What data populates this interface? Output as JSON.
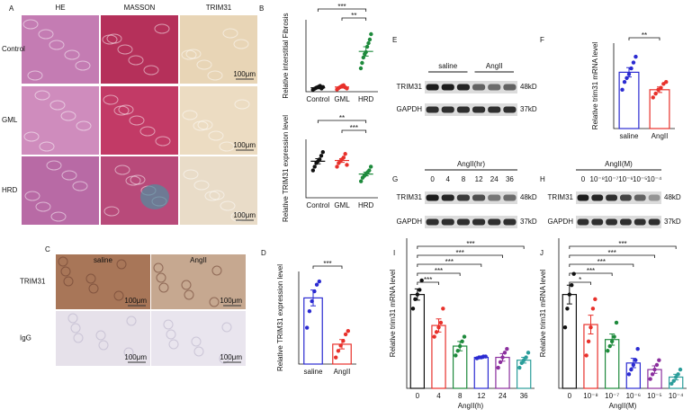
{
  "panel_labels": [
    "A",
    "B",
    "C",
    "D",
    "E",
    "F",
    "G",
    "H",
    "I",
    "J"
  ],
  "histology_A": {
    "columns": [
      "HE",
      "MASSON",
      "TRIM31"
    ],
    "rows": [
      "Control",
      "GML",
      "HRD"
    ],
    "scale_bar": "100μm"
  },
  "ihc_C": {
    "columns": [
      "saline",
      "AngII"
    ],
    "rows": [
      "TRIM31",
      "IgG"
    ],
    "scale_bar": "100μm"
  },
  "blot_E": {
    "groups": [
      "saline",
      "AngII"
    ],
    "bands": [
      "TRIM31",
      "GAPDH"
    ],
    "sizes": [
      "48kD",
      "37kD"
    ]
  },
  "blot_G": {
    "title": "AngII(hr)",
    "lanes": [
      "0",
      "4",
      "8",
      "12",
      "24",
      "36"
    ],
    "bands": [
      "TRIM31",
      "GAPDH"
    ],
    "sizes": [
      "48kD",
      "37kD"
    ]
  },
  "blot_H": {
    "title": "AngII(M)",
    "lanes": [
      "0",
      "10⁻⁸",
      "10⁻⁷",
      "10⁻⁶",
      "10⁻⁵",
      "10⁻⁴"
    ],
    "bands": [
      "TRIM31",
      "GAPDH"
    ],
    "sizes": [
      "48kD",
      "37kD"
    ]
  },
  "chart_data": [
    {
      "type": "dot",
      "y_label": "Relative interstitial Fibrosis",
      "categories": [
        "Control",
        "GML",
        "HRD"
      ],
      "values": [
        1.1,
        1.3,
        11.2
      ],
      "errors": [
        0.3,
        0.3,
        1.3
      ],
      "points": [
        [
          0.5,
          0.8,
          1.0,
          1.2,
          1.4,
          1.6,
          0.9,
          1.3
        ],
        [
          0.6,
          1.0,
          1.3,
          1.6,
          1.8,
          1.2,
          0.9
        ],
        [
          6.5,
          8,
          9.5,
          10.5,
          11,
          12.5,
          13.5,
          14.5,
          16
        ]
      ],
      "colors": [
        "#111111",
        "#e8312b",
        "#1e8a3c"
      ],
      "ylim": [
        0,
        20
      ],
      "significance": [
        {
          "between": [
            "Control",
            "HRD"
          ],
          "label": "***"
        },
        {
          "between": [
            "GML",
            "HRD"
          ],
          "label": "**"
        }
      ]
    },
    {
      "type": "dot",
      "y_label": "Relative TRIM31 expression level",
      "categories": [
        "Control",
        "GML",
        "HRD"
      ],
      "values": [
        1.0,
        1.02,
        0.65
      ],
      "errors": [
        0.07,
        0.05,
        0.05
      ],
      "points": [
        [
          0.75,
          0.85,
          0.95,
          1.0,
          1.05,
          1.15,
          1.25
        ],
        [
          0.85,
          0.95,
          1.0,
          1.05,
          1.1,
          1.2,
          0.9
        ],
        [
          0.45,
          0.55,
          0.6,
          0.65,
          0.7,
          0.75,
          0.85
        ]
      ],
      "colors": [
        "#111111",
        "#e8312b",
        "#1e8a3c"
      ],
      "ylim": [
        0,
        1.6
      ],
      "significance": [
        {
          "between": [
            "Control",
            "HRD"
          ],
          "label": "**"
        },
        {
          "between": [
            "GML",
            "HRD"
          ],
          "label": "***"
        }
      ]
    },
    {
      "type": "bar",
      "y_label": "Relative TRIM31 expression level",
      "categories": [
        "saline",
        "AngII"
      ],
      "values": [
        1.0,
        0.3
      ],
      "errors": [
        0.12,
        0.07
      ],
      "points": [
        [
          0.55,
          0.8,
          0.95,
          1.1,
          1.2,
          1.25
        ],
        [
          0.1,
          0.2,
          0.28,
          0.35,
          0.45,
          0.5
        ]
      ],
      "colors": [
        "#2b2bd1",
        "#e8312b"
      ],
      "ylim": [
        0,
        1.4
      ],
      "significance": [
        {
          "between": [
            "saline",
            "AngII"
          ],
          "label": "***"
        }
      ]
    },
    {
      "type": "bar",
      "y_label": "Relative trim31 mRNA level",
      "categories": [
        "saline",
        "AngII"
      ],
      "values": [
        1.45,
        1.0
      ],
      "errors": [
        0.12,
        0.07
      ],
      "points": [
        [
          1.0,
          1.2,
          1.3,
          1.4,
          1.55,
          1.7,
          1.85
        ],
        [
          0.8,
          0.9,
          1.0,
          1.05,
          1.15,
          1.2
        ]
      ],
      "colors": [
        "#2b2bd1",
        "#e8312b"
      ],
      "ylim": [
        0,
        2.2
      ],
      "significance": [
        {
          "between": [
            "saline",
            "AngII"
          ],
          "label": "**"
        }
      ]
    },
    {
      "type": "bar",
      "y_label": "Relative trim31 mRNA level",
      "x_label": "AngII(h)",
      "categories": [
        "0",
        "4",
        "8",
        "12",
        "24",
        "36"
      ],
      "values": [
        1.0,
        0.67,
        0.45,
        0.33,
        0.33,
        0.3
      ],
      "errors": [
        0.06,
        0.07,
        0.05,
        0.01,
        0.04,
        0.03
      ],
      "points": [
        [
          0.85,
          0.95,
          1.0,
          1.05,
          1.15
        ],
        [
          0.55,
          0.6,
          0.65,
          0.7,
          0.85
        ],
        [
          0.35,
          0.4,
          0.45,
          0.5,
          0.55
        ],
        [
          0.32,
          0.33,
          0.33,
          0.34,
          0.34
        ],
        [
          0.22,
          0.28,
          0.33,
          0.38,
          0.42
        ],
        [
          0.22,
          0.27,
          0.3,
          0.33,
          0.38
        ]
      ],
      "colors": [
        "#111111",
        "#e8312b",
        "#1e8a3c",
        "#2b2bd1",
        "#8b2f9e",
        "#2a9d9a"
      ],
      "ylim": [
        0,
        1.6
      ],
      "significance": [
        {
          "between": [
            "0",
            "36"
          ],
          "label": "***"
        },
        {
          "between": [
            "0",
            "24"
          ],
          "label": "***"
        },
        {
          "between": [
            "0",
            "12"
          ],
          "label": "***"
        },
        {
          "between": [
            "0",
            "8"
          ],
          "label": "***"
        },
        {
          "between": [
            "0",
            "4"
          ],
          "label": "***"
        }
      ]
    },
    {
      "type": "bar",
      "y_label": "Relative trim31 mRNA level",
      "x_label": "AngII(M)",
      "categories": [
        "0",
        "10⁻⁸",
        "10⁻⁷",
        "10⁻⁶",
        "10⁻⁵",
        "10⁻⁴"
      ],
      "values": [
        1.0,
        0.68,
        0.52,
        0.27,
        0.2,
        0.12
      ],
      "errors": [
        0.1,
        0.1,
        0.06,
        0.05,
        0.04,
        0.03
      ],
      "points": [
        [
          0.65,
          0.85,
          1.0,
          1.1,
          1.22
        ],
        [
          0.35,
          0.5,
          0.65,
          0.85,
          0.95
        ],
        [
          0.4,
          0.45,
          0.5,
          0.55,
          0.7
        ],
        [
          0.15,
          0.2,
          0.25,
          0.3,
          0.42
        ],
        [
          0.1,
          0.15,
          0.2,
          0.25,
          0.3
        ],
        [
          0.05,
          0.08,
          0.12,
          0.15,
          0.2
        ]
      ],
      "colors": [
        "#111111",
        "#e8312b",
        "#1e8a3c",
        "#2b2bd1",
        "#8b2f9e",
        "#2a9d9a"
      ],
      "ylim": [
        0,
        1.6
      ],
      "significance": [
        {
          "between": [
            "0",
            "10⁻⁴"
          ],
          "label": "***"
        },
        {
          "between": [
            "0",
            "10⁻⁵"
          ],
          "label": "***"
        },
        {
          "between": [
            "0",
            "10⁻⁶"
          ],
          "label": "***"
        },
        {
          "between": [
            "0",
            "10⁻⁷"
          ],
          "label": "***"
        },
        {
          "between": [
            "0",
            "10⁻⁸"
          ],
          "label": "*"
        }
      ]
    }
  ]
}
